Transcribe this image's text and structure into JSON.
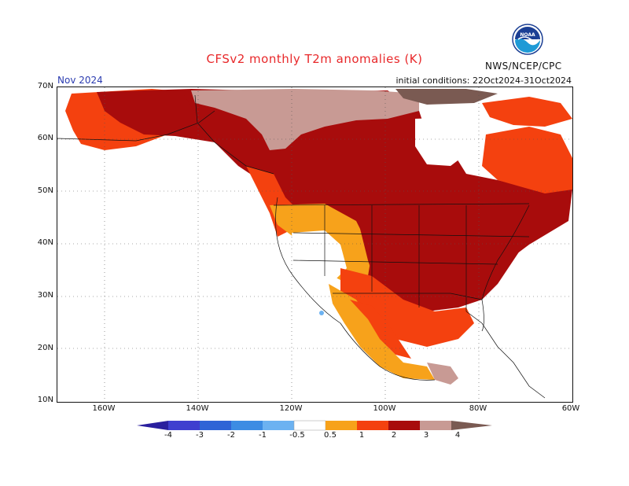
{
  "title": "CFSv2 monthly T2m anomalies (K)",
  "agency": "NWS/NCEP/CPC",
  "logo_text": "NOAA",
  "forecast_month": "Nov 2024",
  "initial_conditions": "initial conditions: 22Oct2024-31Oct2024",
  "map": {
    "latitude_labels": [
      "70N",
      "60N",
      "50N",
      "40N",
      "30N",
      "20N",
      "10N"
    ],
    "longitude_labels": [
      "160W",
      "140W",
      "120W",
      "100W",
      "80W",
      "60W"
    ],
    "grid": "dotted"
  },
  "colorbar": {
    "labels": [
      "-4",
      "-3",
      "-2",
      "-1",
      "-0.5",
      "0.5",
      "1",
      "2",
      "3",
      "4"
    ],
    "colors": [
      "#2a1f9e",
      "#3f3fcf",
      "#2f64d6",
      "#3c8ce3",
      "#6cb2f1",
      "#ffffff",
      "#f7a21b",
      "#f4410f",
      "#a80c0c",
      "#c89a94",
      "#7a5a52"
    ]
  },
  "anomaly_colors": {
    "0.5_to_1": "#f7a21b",
    "1_to_2": "#f4410f",
    "2_to_3": "#a80c0c",
    "3_to_4": "#c89a94",
    "above_4": "#7a5a52",
    "below_-0.5": "#6cb2f1"
  }
}
